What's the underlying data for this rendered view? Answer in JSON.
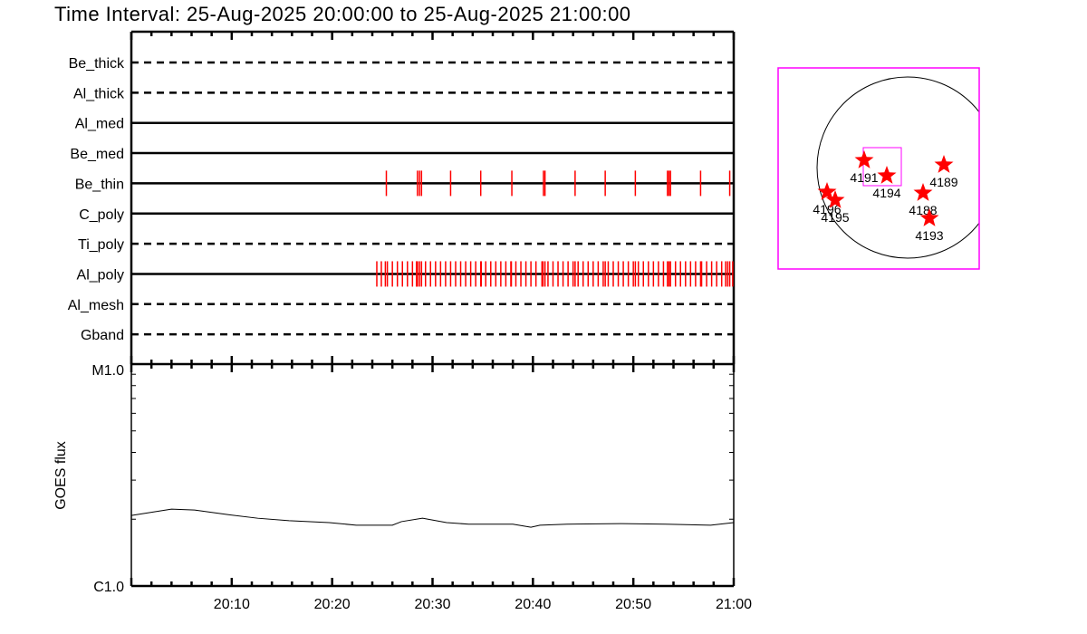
{
  "title": "Time Interval: 25-Aug-2025 20:00:00 to 25-Aug-2025 21:00:00",
  "chart_data": [
    {
      "type": "timeline",
      "xlim_minutes_after_20_00": [
        0,
        60
      ],
      "rows": [
        {
          "name": "Be_thick",
          "style": "dashed",
          "obs": []
        },
        {
          "name": "Al_thick",
          "style": "dashed",
          "obs": []
        },
        {
          "name": "Al_med",
          "style": "solid",
          "obs": []
        },
        {
          "name": "Be_med",
          "style": "solid",
          "obs": []
        },
        {
          "name": "Be_thin",
          "style": "solid",
          "obs": [
            25.4,
            28.5,
            28.7,
            28.9,
            31.8,
            34.8,
            37.9,
            41.05,
            41.2,
            44.2,
            47.2,
            50.2,
            53.4,
            53.55,
            53.7,
            56.7,
            59.6
          ]
        },
        {
          "name": "C_poly",
          "style": "solid",
          "obs": []
        },
        {
          "name": "Ti_poly",
          "style": "dashed",
          "obs": []
        },
        {
          "name": "Al_poly",
          "style": "solid",
          "obs": [
            24.45,
            24.9,
            25.3,
            25.5,
            26.0,
            26.5,
            27.0,
            27.5,
            28.0,
            28.4,
            28.5,
            28.7,
            28.9,
            29.3,
            29.8,
            30.3,
            30.8,
            31.3,
            31.8,
            32.3,
            32.8,
            33.3,
            33.8,
            34.3,
            34.8,
            34.85,
            35.3,
            35.8,
            36.3,
            36.8,
            37.3,
            37.8,
            37.85,
            38.3,
            38.8,
            39.3,
            39.8,
            40.3,
            40.9,
            41.0,
            41.2,
            41.5,
            42.0,
            42.5,
            43.0,
            43.5,
            44.0,
            44.2,
            44.5,
            45.0,
            45.5,
            46.0,
            46.5,
            47.0,
            47.2,
            47.5,
            48.0,
            48.5,
            49.0,
            49.5,
            50.0,
            50.2,
            50.5,
            51.0,
            51.5,
            52.0,
            52.5,
            53.0,
            53.4,
            53.55,
            53.7,
            54.2,
            54.7,
            55.2,
            55.7,
            56.2,
            56.7,
            56.8,
            57.3,
            57.8,
            58.3,
            58.8,
            59.2,
            59.4,
            59.6,
            59.9
          ]
        },
        {
          "name": "Al_mesh",
          "style": "dashed",
          "obs": []
        },
        {
          "name": "Gband",
          "style": "dashed",
          "obs": []
        }
      ],
      "obs_color": "#ff0000"
    },
    {
      "type": "line",
      "ylabel": "GOES flux",
      "yscale": "log",
      "ylim": [
        1e-06,
        1e-05
      ],
      "ytick_labels": [
        "C1.0",
        "M1.0"
      ],
      "xtick_labels": [
        "20:10",
        "20:20",
        "20:30",
        "20:40",
        "20:50",
        "21:00"
      ],
      "x_minutes_after_20_00": [
        0,
        4,
        6.3,
        9.5,
        12.6,
        15.7,
        19.7,
        22.4,
        26,
        26.9,
        29,
        31.4,
        33.6,
        38,
        39.8,
        40.7,
        43.4,
        48.8,
        53.2,
        57.7,
        60
      ],
      "flux": [
        2.08e-06,
        2.22e-06,
        2.2e-06,
        2.1e-06,
        2.02e-06,
        1.97e-06,
        1.93e-06,
        1.88e-06,
        1.88e-06,
        1.95e-06,
        2.02e-06,
        1.93e-06,
        1.9e-06,
        1.9e-06,
        1.84e-06,
        1.88e-06,
        1.9e-06,
        1.91e-06,
        1.9e-06,
        1.88e-06,
        1.93e-06
      ]
    }
  ],
  "map": {
    "frame_color": "#ff00ff",
    "star_color": "#ff0000",
    "regions": [
      "4191",
      "4194",
      "4189",
      "4188",
      "4193",
      "4196",
      "4195"
    ]
  }
}
